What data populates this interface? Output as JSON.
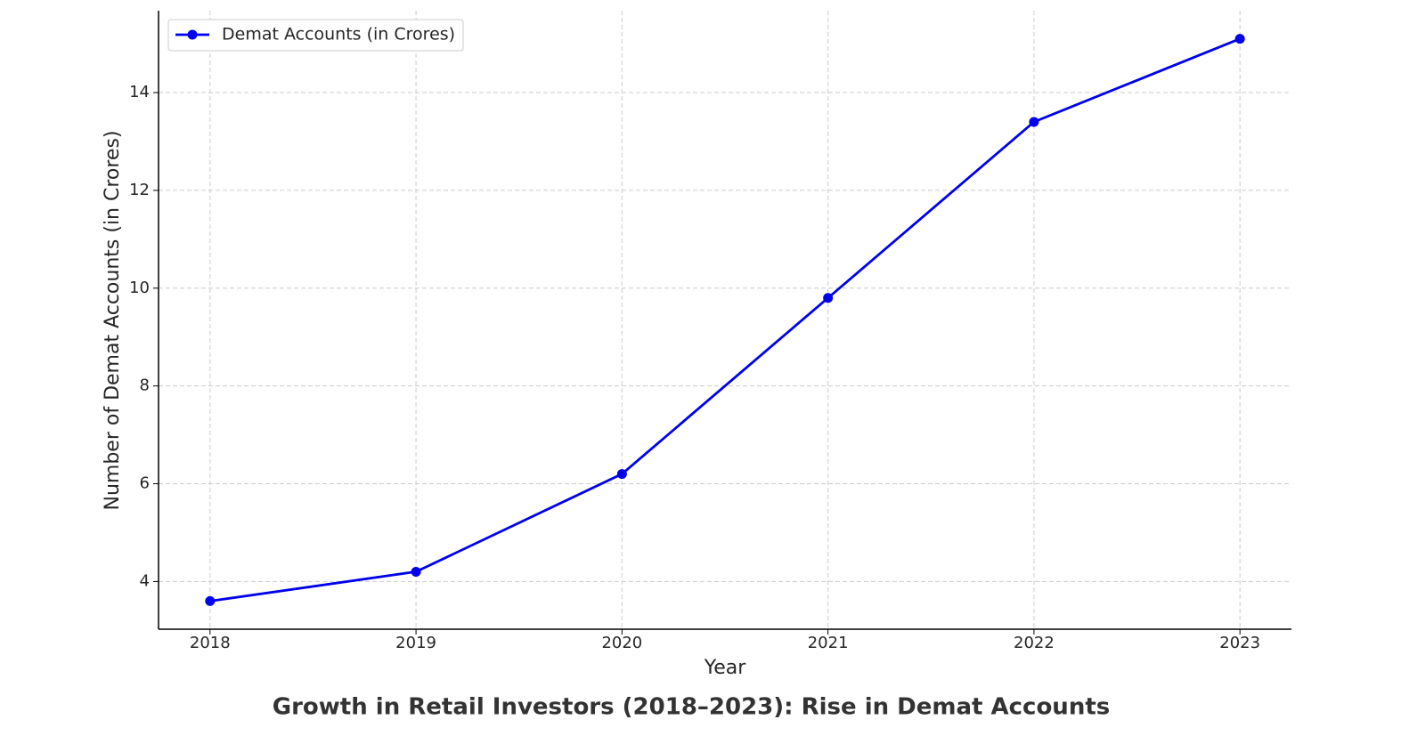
{
  "chart_data": {
    "type": "line",
    "title": "Growth in Retail Investors (2018–2023): Rise in Demat Accounts",
    "xlabel": "Year",
    "ylabel": "Number of Demat Accounts (in Crores)",
    "x": [
      2018,
      2019,
      2020,
      2021,
      2022,
      2023
    ],
    "series": [
      {
        "name": "Demat Accounts (in Crores)",
        "color": "#0000ee",
        "values": [
          3.6,
          4.2,
          6.2,
          9.8,
          13.4,
          15.1
        ]
      }
    ],
    "xlim": [
      2017.75,
      2023.25
    ],
    "xticks": [
      2018,
      2019,
      2020,
      2021,
      2022,
      2023
    ],
    "ylim": [
      3.025,
      15.675
    ],
    "yticks": [
      4,
      6,
      8,
      10,
      12,
      14
    ],
    "grid": true,
    "legend": "upper-left"
  }
}
